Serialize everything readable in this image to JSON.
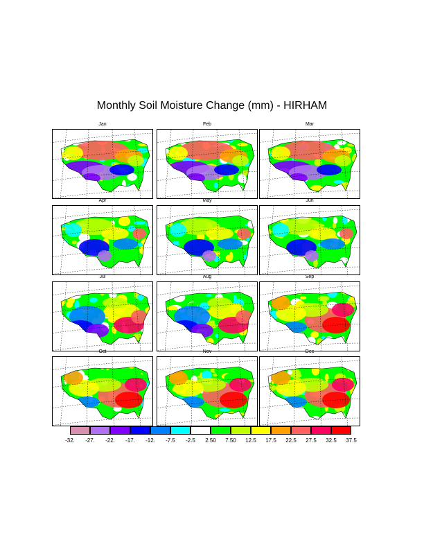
{
  "title": "Monthly Soil Moisture Change (mm) - HIRHAM",
  "panels": [
    {
      "label": "Jan",
      "style": "winter"
    },
    {
      "label": "Feb",
      "style": "winter"
    },
    {
      "label": "Mar",
      "style": "winter"
    },
    {
      "label": "Apr",
      "style": "spring"
    },
    {
      "label": "May",
      "style": "spring"
    },
    {
      "label": "Jun",
      "style": "spring"
    },
    {
      "label": "Jul",
      "style": "summer"
    },
    {
      "label": "Aug",
      "style": "summer"
    },
    {
      "label": "Sep",
      "style": "fall"
    },
    {
      "label": "Oct",
      "style": "fall"
    },
    {
      "label": "Nov",
      "style": "fall"
    },
    {
      "label": "Dec",
      "style": "fall"
    }
  ],
  "colorbar": {
    "colors": [
      "#d98fb0",
      "#b070f0",
      "#8000ff",
      "#0000ff",
      "#0080ff",
      "#00ffff",
      "#ffffff",
      "#00ff00",
      "#c0ff00",
      "#ffff00",
      "#ffa000",
      "#ff6060",
      "#ff0060",
      "#ff0000"
    ],
    "labels": [
      "-32.",
      "-27.",
      "-22.",
      "-17.",
      "-12.",
      "-7.5",
      "-2.5",
      "2.50",
      "7.50",
      "12.5",
      "17.5",
      "22.5",
      "27.5",
      "32.5",
      "37.5"
    ]
  }
}
